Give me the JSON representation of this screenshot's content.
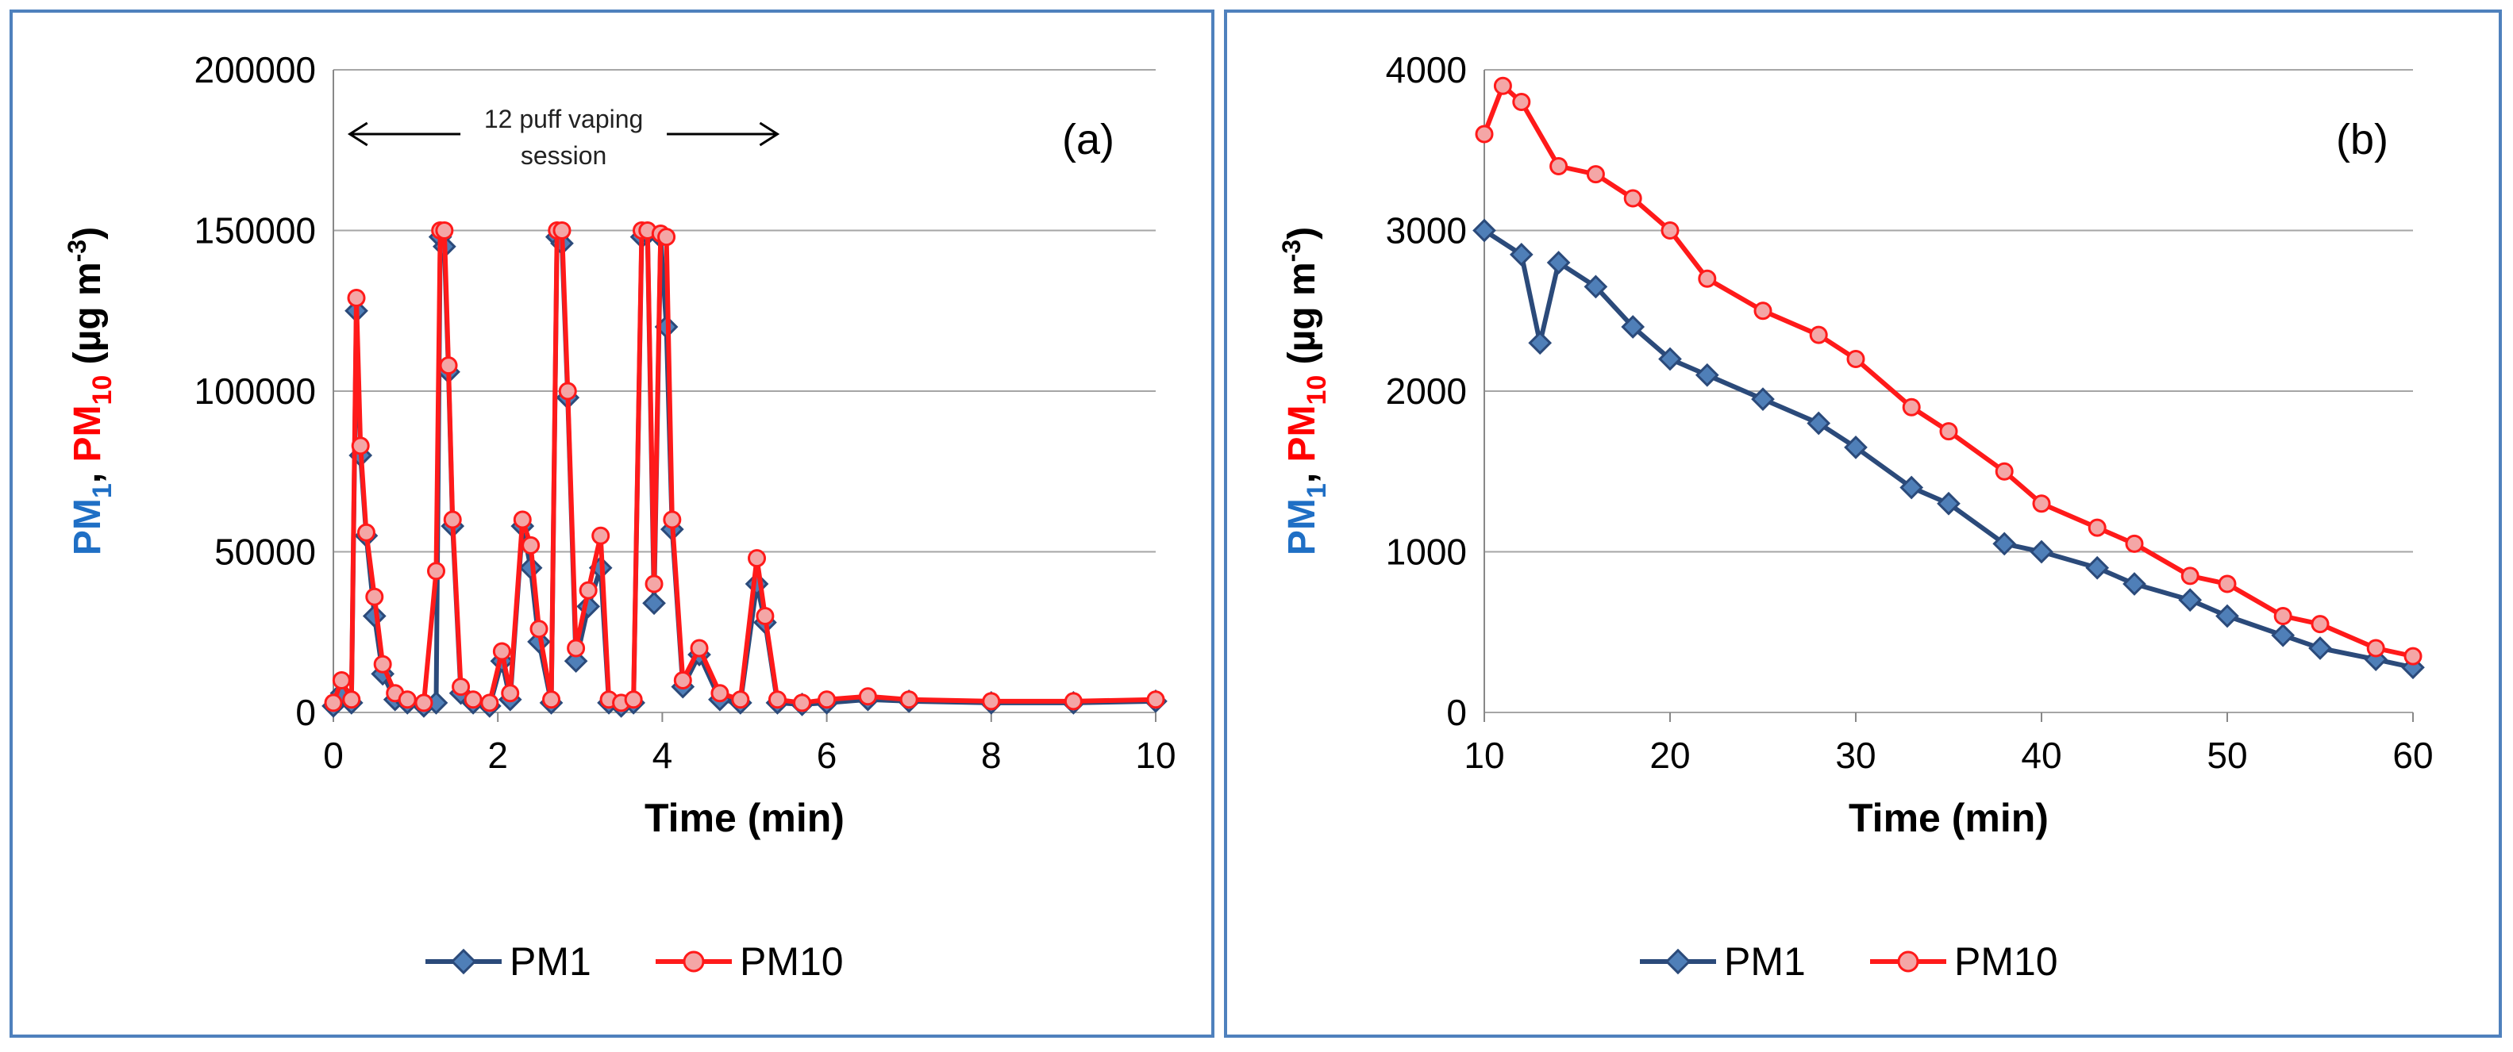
{
  "colors": {
    "pm1": "#2b4a7a",
    "pm1_fill": "#4f7fb8",
    "pm10": "#ff1a1a",
    "pm10_fill": "#f4a6a6",
    "ylabel_pm1": "#1f6fc5",
    "ylabel_pm10": "#ff0000",
    "grid": "#a6a6a6",
    "border": "#4f81bd"
  },
  "chart_data": [
    {
      "type": "line",
      "panel_label": "(a)",
      "xlabel": "Time (min)",
      "ylabel": {
        "pm1_base": "PM",
        "pm1_sub": "1",
        "sep": ", ",
        "pm10_base": "PM",
        "pm10_sub": "10",
        "unit_pre": " (µg m",
        "unit_sup": "-3",
        "unit_post": ")"
      },
      "xlim": [
        0,
        10
      ],
      "ylim": [
        0,
        200000
      ],
      "xticks": [
        "0",
        "2",
        "4",
        "6",
        "8",
        "10"
      ],
      "yticks": [
        "0",
        "50000",
        "100000",
        "150000",
        "200000"
      ],
      "legend": [
        "PM1",
        "PM10"
      ],
      "annotation": {
        "line1": "12 puff vaping",
        "line2": "session",
        "x_start": 0.2,
        "x_end": 5.4,
        "y": 180000
      },
      "series": [
        {
          "name": "PM1",
          "x": [
            0,
            0.1,
            0.22,
            0.28,
            0.33,
            0.4,
            0.5,
            0.6,
            0.75,
            0.9,
            1.1,
            1.25,
            1.3,
            1.35,
            1.4,
            1.45,
            1.55,
            1.7,
            1.9,
            2.05,
            2.15,
            2.3,
            2.4,
            2.5,
            2.65,
            2.72,
            2.78,
            2.85,
            2.95,
            3.1,
            3.25,
            3.35,
            3.5,
            3.65,
            3.75,
            3.82,
            3.9,
            3.98,
            4.05,
            4.12,
            4.25,
            4.45,
            4.7,
            4.95,
            5.15,
            5.25,
            5.4,
            5.7,
            6.0,
            6.5,
            7.0,
            8.0,
            9.0,
            10.0
          ],
          "values": [
            2000,
            6000,
            3000,
            125000,
            80000,
            55000,
            30000,
            12000,
            4000,
            3000,
            2000,
            3000,
            148000,
            145000,
            106000,
            58000,
            6000,
            3000,
            2000,
            16000,
            4000,
            58000,
            45000,
            22000,
            3000,
            148000,
            146000,
            98000,
            16000,
            33000,
            45000,
            3000,
            2000,
            3000,
            148000,
            149000,
            34000,
            148000,
            120000,
            57000,
            8000,
            18000,
            4000,
            3000,
            40000,
            28000,
            3000,
            2500,
            3000,
            4000,
            3500,
            3000,
            3000,
            3500
          ]
        },
        {
          "name": "PM10",
          "x": [
            0,
            0.1,
            0.22,
            0.28,
            0.33,
            0.4,
            0.5,
            0.6,
            0.75,
            0.9,
            1.1,
            1.25,
            1.3,
            1.35,
            1.4,
            1.45,
            1.55,
            1.7,
            1.9,
            2.05,
            2.15,
            2.3,
            2.4,
            2.5,
            2.65,
            2.72,
            2.78,
            2.85,
            2.95,
            3.1,
            3.25,
            3.35,
            3.5,
            3.65,
            3.75,
            3.82,
            3.9,
            3.98,
            4.05,
            4.12,
            4.25,
            4.45,
            4.7,
            4.95,
            5.15,
            5.25,
            5.4,
            5.7,
            6.0,
            6.5,
            7.0,
            8.0,
            9.0,
            10.0
          ],
          "values": [
            3000,
            10000,
            4000,
            129000,
            83000,
            56000,
            36000,
            15000,
            6000,
            4000,
            3000,
            44000,
            150000,
            150000,
            108000,
            60000,
            8000,
            4000,
            3000,
            19000,
            6000,
            60000,
            52000,
            26000,
            4000,
            150000,
            150000,
            100000,
            20000,
            38000,
            55000,
            4000,
            3000,
            4000,
            150000,
            150000,
            40000,
            149000,
            148000,
            60000,
            10000,
            20000,
            6000,
            4000,
            48000,
            30000,
            4000,
            3000,
            4000,
            5000,
            4000,
            3500,
            3500,
            4000
          ]
        }
      ]
    },
    {
      "type": "line",
      "panel_label": "(b)",
      "xlabel": "Time (min)",
      "ylabel": {
        "pm1_base": "PM",
        "pm1_sub": "1",
        "sep": ", ",
        "pm10_base": "PM",
        "pm10_sub": "10",
        "unit_pre": " (µg m",
        "unit_sup": "-3",
        "unit_post": ")"
      },
      "xlim": [
        10,
        60
      ],
      "ylim": [
        0,
        4000
      ],
      "xticks": [
        "10",
        "20",
        "30",
        "40",
        "50",
        "60"
      ],
      "yticks": [
        "0",
        "1000",
        "2000",
        "3000",
        "4000"
      ],
      "legend": [
        "PM1",
        "PM10"
      ],
      "series": [
        {
          "name": "PM1",
          "x": [
            10,
            12,
            13,
            14,
            16,
            18,
            20,
            22,
            25,
            28,
            30,
            33,
            35,
            38,
            40,
            43,
            45,
            48,
            50,
            53,
            55,
            58,
            60
          ],
          "values": [
            3000,
            2850,
            2300,
            2800,
            2650,
            2400,
            2200,
            2100,
            1950,
            1800,
            1650,
            1400,
            1300,
            1050,
            1000,
            900,
            800,
            700,
            600,
            480,
            400,
            330,
            280
          ]
        },
        {
          "name": "PM10",
          "x": [
            10,
            11,
            12,
            14,
            16,
            18,
            20,
            22,
            25,
            28,
            30,
            33,
            35,
            38,
            40,
            43,
            45,
            48,
            50,
            53,
            55,
            58,
            60
          ],
          "values": [
            3600,
            3900,
            3800,
            3400,
            3350,
            3200,
            3000,
            2700,
            2500,
            2350,
            2200,
            1900,
            1750,
            1500,
            1300,
            1150,
            1050,
            850,
            800,
            600,
            550,
            400,
            350
          ]
        }
      ]
    }
  ]
}
